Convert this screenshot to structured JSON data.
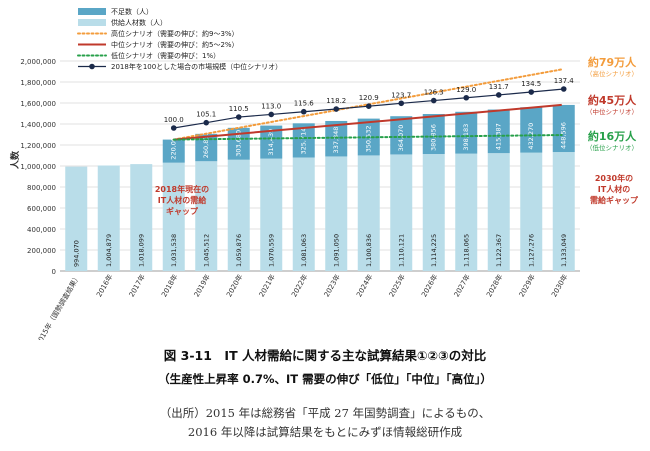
{
  "chart_data": {
    "type": "bar",
    "ylabel": "人数",
    "ylim": [
      0,
      2000000
    ],
    "yticks": [
      "0",
      "200,000",
      "400,000",
      "600,000",
      "800,000",
      "1,000,000",
      "1,200,000",
      "1,400,000",
      "1,600,000",
      "1,800,000",
      "2,000,000"
    ],
    "categories": [
      "2015年（国勢調査結果）",
      "2016年",
      "2017年",
      "2018年",
      "2019年",
      "2020年",
      "2021年",
      "2022年",
      "2023年",
      "2024年",
      "2025年",
      "2026年",
      "2027年",
      "2028年",
      "2029年",
      "2030年"
    ],
    "supply": {
      "name": "供給人材数（人）",
      "values": [
        994070,
        1004879,
        1018099,
        1031538,
        1045512,
        1059876,
        1070559,
        1081063,
        1091050,
        1100836,
        1110121,
        1114225,
        1118065,
        1122367,
        1127276,
        1133049
      ],
      "labels": [
        "994,070",
        "1,004,879",
        "1,018,099",
        "1,031,538",
        "1,045,512",
        "1,059,876",
        "1,070,559",
        "1,081,063",
        "1,091,050",
        "1,100,836",
        "1,110,121",
        "1,114,225",
        "1,118,065",
        "1,122,367",
        "1,127,276",
        "1,133,049"
      ]
    },
    "shortage": {
      "name": "不足数（人）",
      "start_index": 3,
      "values": [
        220000,
        260835,
        303680,
        314439,
        325714,
        337848,
        350532,
        364070,
        380856,
        398183,
        415387,
        432270,
        448596
      ],
      "labels": [
        "220,000",
        "260,835",
        "303,680",
        "314,439",
        "325,714",
        "337,848",
        "350,532",
        "364,070",
        "380,856",
        "398,183",
        "415,387",
        "432,270",
        "448,596"
      ]
    },
    "scenarios": [
      {
        "name": "高位シナリオ（需要の伸び：約9～3%）",
        "style": "dotted",
        "color": "#f39c3c",
        "start": 1251538,
        "end": 1920000
      },
      {
        "name": "中位シナリオ（需要の伸び：約5～2%）",
        "style": "solid",
        "color": "#c0392b",
        "start": 1251538,
        "end": 1581645
      },
      {
        "name": "低位シナリオ（需要の伸び：1%）",
        "style": "dotted",
        "color": "#27a04a",
        "start": 1251538,
        "end": 1295000
      }
    ],
    "index_series": {
      "name": "2018年を100とした場合の市場規模（中位シナリオ）",
      "start_index": 3,
      "values": [
        100.0,
        105.1,
        110.5,
        113.0,
        115.6,
        118.2,
        120.9,
        123.7,
        126.3,
        129.0,
        131.7,
        134.5,
        137.4
      ],
      "labels": [
        "100.0",
        "105.1",
        "110.5",
        "113.0",
        "115.6",
        "118.2",
        "120.9",
        "123.7",
        "126.3",
        "129.0",
        "131.7",
        "134.5",
        "137.4"
      ]
    },
    "annotations": {
      "gap2018": [
        "2018年現在の",
        "IT人材の需給",
        "ギャップ"
      ],
      "gap2030": [
        "2030年の",
        "IT人材の",
        "需給ギャップ"
      ],
      "high_value": "約79万人",
      "high_label": "（高位シナリオ）",
      "mid_value": "約45万人",
      "mid_label": "（中位シナリオ）",
      "low_value": "約16万人",
      "low_label": "（低位シナリオ）"
    },
    "colors": {
      "supply": "#b9dde9",
      "shortage": "#5aa6c6",
      "high": "#f39c3c",
      "mid": "#c0392b",
      "low": "#27a04a",
      "index": "#1b2a4a",
      "annotation": "#c0392b"
    }
  },
  "caption": {
    "title": "図 3-11　IT 人材需給に関する主な試算結果①②③の対比",
    "subtitle": "（生産性上昇率 0.7%、IT 需要の伸び「低位」「中位」「高位」）",
    "source_line1": "（出所）2015 年は総務省「平成 27 年国勢調査」によるもの、",
    "source_line2": "2016 年以降は試算結果をもとにみずほ情報総研作成"
  }
}
